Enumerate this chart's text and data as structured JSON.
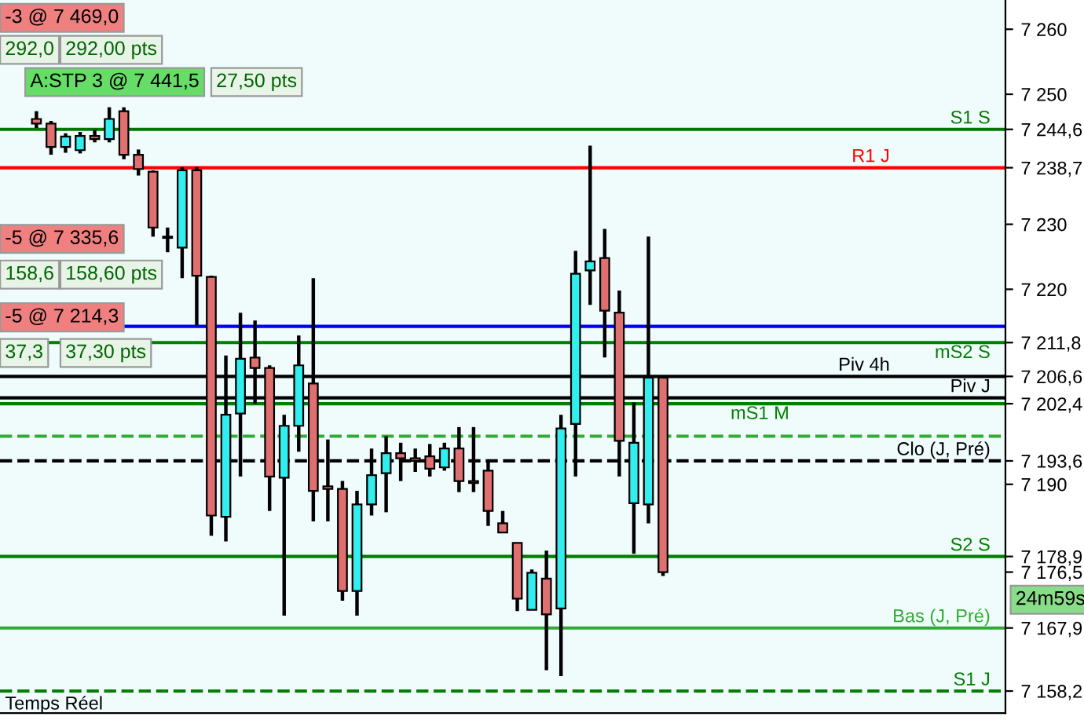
{
  "chart_data": {
    "type": "candlestick",
    "categories": [
      null,
      null,
      null,
      null,
      null,
      null,
      null,
      null,
      null,
      null,
      null,
      null,
      null,
      null,
      null,
      null,
      null,
      null,
      null,
      null,
      null,
      null,
      null,
      null,
      null,
      null,
      null,
      null,
      null,
      null,
      null,
      null,
      null,
      null,
      null,
      null,
      null,
      null,
      null,
      null,
      null,
      null,
      null,
      null,
      null,
      null,
      null,
      null,
      null,
      null,
      null,
      null,
      null,
      null,
      null,
      null,
      null,
      null,
      null,
      null,
      null,
      null,
      null,
      null,
      null,
      null,
      null,
      null,
      null
    ],
    "ohlc": [
      null,
      null,
      [
        7246.2,
        7247.4,
        7244.8,
        7245.5
      ],
      [
        7245.5,
        7245.9,
        7240.7,
        7241.9
      ],
      [
        7241.9,
        7244.0,
        7241.0,
        7243.5
      ],
      [
        7241.4,
        7244.2,
        7240.9,
        7243.6
      ],
      [
        7243.6,
        7244.5,
        7242.6,
        7243.1
      ],
      [
        7243.1,
        7248.0,
        7242.6,
        7246.2
      ],
      [
        7247.4,
        7248.0,
        7240.0,
        7240.7
      ],
      [
        7240.7,
        7241.5,
        7237.5,
        7238.5
      ],
      [
        7238.1,
        7238.3,
        7228.1,
        7229.5
      ],
      [
        7228.1,
        7229.5,
        7225.7,
        7227.9
      ],
      [
        7226.4,
        7238.8,
        7221.7,
        7238.3
      ],
      [
        7238.3,
        7238.8,
        7214.5,
        7222.1
      ],
      [
        7221.9,
        7222.1,
        7182.1,
        7185.2
      ],
      [
        7185.0,
        7209.8,
        7181.2,
        7200.7
      ],
      [
        7200.9,
        7216.4,
        7191.2,
        7209.3
      ],
      [
        7209.5,
        7215.2,
        7202.4,
        7207.9
      ],
      [
        7207.9,
        7208.3,
        7185.9,
        7191.2
      ],
      [
        7191.0,
        7200.7,
        7169.8,
        7199.0
      ],
      [
        7199.0,
        7212.9,
        7195.0,
        7208.3
      ],
      [
        7205.5,
        7221.7,
        7184.3,
        7189.0
      ],
      [
        7189.7,
        7196.9,
        7184.3,
        7189.3
      ],
      [
        7189.3,
        7190.5,
        7172.1,
        7173.6
      ],
      [
        7173.6,
        7189.0,
        7169.8,
        7186.9
      ],
      [
        7186.9,
        7195.5,
        7185.2,
        7191.4
      ],
      [
        7191.7,
        7197.4,
        7185.7,
        7194.8
      ],
      [
        7194.8,
        7196.4,
        7190.5,
        7194.0
      ],
      [
        7194.0,
        7195.5,
        7191.9,
        7193.6
      ],
      [
        7194.3,
        7196.2,
        7191.2,
        7192.4
      ],
      [
        7192.6,
        7196.4,
        7192.1,
        7195.5
      ],
      [
        7195.5,
        7198.8,
        7188.8,
        7190.5
      ],
      [
        7190.5,
        7198.8,
        7188.8,
        7190.2
      ],
      [
        7192.1,
        7193.6,
        7183.6,
        7185.9
      ],
      [
        7184.0,
        7185.9,
        7182.6,
        7182.6
      ],
      [
        7181.0,
        7181.0,
        7170.5,
        7172.4
      ],
      [
        7170.7,
        7176.9,
        7170.7,
        7176.4
      ],
      [
        7175.5,
        7179.8,
        7161.4,
        7170.0
      ],
      [
        7170.9,
        7200.7,
        7160.5,
        7198.6
      ],
      [
        7199.3,
        7225.9,
        7191.2,
        7222.4
      ],
      [
        7222.9,
        7242.1,
        7217.6,
        7224.3
      ],
      [
        7224.8,
        7229.3,
        7209.5,
        7216.7
      ],
      [
        7216.4,
        7219.8,
        7191.2,
        7196.7
      ],
      [
        7187.1,
        7202.6,
        7179.3,
        7196.4
      ],
      [
        7186.9,
        7228.1,
        7184.0,
        7206.4
      ],
      [
        7206.4,
        7206.4,
        7175.9,
        7176.5
      ],
      null,
      null,
      null,
      null,
      null,
      null,
      null,
      null,
      null,
      null,
      null,
      null,
      null,
      null,
      null,
      null,
      null,
      null,
      null,
      null,
      null,
      null,
      null
    ],
    "ylim": [
      7154.8,
      7264.5
    ],
    "yticks": [
      {
        "value": 7260,
        "label": "7 260"
      },
      {
        "value": 7250,
        "label": "7 250"
      },
      {
        "value": 7244.6,
        "label": "7 244,6"
      },
      {
        "value": 7238.7,
        "label": "7 238,7"
      },
      {
        "value": 7230,
        "label": "7 230"
      },
      {
        "value": 7220,
        "label": "7 220"
      },
      {
        "value": 7211.8,
        "label": "7 211,8"
      },
      {
        "value": 7206.6,
        "label": "7 206,6"
      },
      {
        "value": 7202.4,
        "label": "7 202,4"
      },
      {
        "value": 7193.6,
        "label": "7 193,6"
      },
      {
        "value": 7190,
        "label": "7 190"
      },
      {
        "value": 7178.9,
        "label": "7 178,9"
      },
      {
        "value": 7176.5,
        "label": "7 176,5"
      },
      {
        "value": 7167.9,
        "label": "7 167,9"
      },
      {
        "value": 7158.2,
        "label": "7 158,2"
      }
    ],
    "tick_labels": "y",
    "ref_lines": [
      {
        "axis": "y",
        "value": 7244.6,
        "label": "S1 S",
        "color": "#007700",
        "line_style": "solid"
      },
      {
        "axis": "y",
        "value": 7238.7,
        "label": "R1 J",
        "color": "#ff0000",
        "line_style": "solid"
      },
      {
        "axis": "y",
        "value": 7214.3,
        "color": "#0000ff",
        "line_style": "solid"
      },
      {
        "axis": "y",
        "value": 7211.8,
        "label": "mS2 S",
        "color": "#008000",
        "line_style": "solid"
      },
      {
        "axis": "y",
        "value": 7206.6,
        "label": "Piv 4h",
        "color": "#000000",
        "line_style": "solid"
      },
      {
        "axis": "y",
        "value": 7203.3,
        "label": "Piv J",
        "color": "#000000",
        "line_style": "solid"
      },
      {
        "axis": "y",
        "value": 7202.4,
        "label": "mS1 M",
        "color": "#008000",
        "line_style": "solid"
      },
      {
        "axis": "y",
        "value": 7197.4,
        "color": "#33aa33",
        "line_style": "dashed"
      },
      {
        "axis": "y",
        "value": 7193.6,
        "label": "Clo (J, Pré)",
        "color": "#000000",
        "line_style": "dashed"
      },
      {
        "axis": "y",
        "value": 7178.9,
        "label": "S2 S",
        "color": "#008000",
        "line_style": "solid"
      },
      {
        "axis": "y",
        "value": 7167.9,
        "label": "Bas (J, Pré)",
        "color": "#33aa33",
        "line_style": "solid"
      },
      {
        "axis": "y",
        "value": 7158.2,
        "label": "S1 J",
        "color": "#008000",
        "line_style": "dashed"
      }
    ],
    "annotations": [
      "-3 @ 7 469,0",
      "292,0",
      "292,00 pts",
      "A:STP 3 @ 7 441,5",
      "27,50 pts",
      "-5 @ 7 335,6",
      "158,6",
      "158,60 pts",
      "-5 @ 7 214,3",
      "37,3",
      "37,30 pts",
      "24m59s",
      "Temps Réel"
    ]
  }
}
